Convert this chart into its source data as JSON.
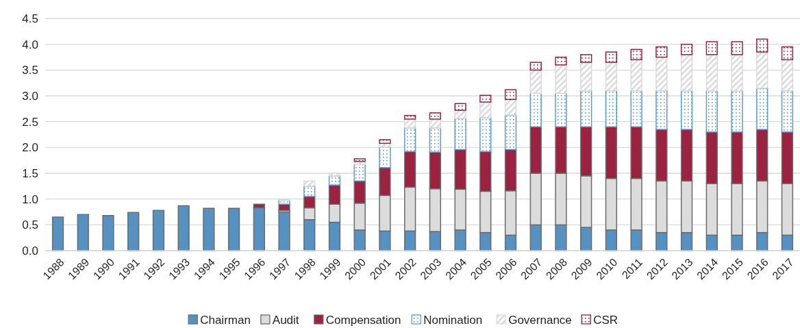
{
  "chart_data": {
    "type": "bar",
    "stacked": true,
    "categories": [
      "1988",
      "1989",
      "1990",
      "1991",
      "1992",
      "1993",
      "1994",
      "1995",
      "1996",
      "1997",
      "1998",
      "1999",
      "2000",
      "2001",
      "2002",
      "2003",
      "2004",
      "2005",
      "2006",
      "2007",
      "2008",
      "2009",
      "2010",
      "2011",
      "2012",
      "2013",
      "2014",
      "2015",
      "2016",
      "2017"
    ],
    "series": [
      {
        "name": "Chairman",
        "color": "#5591c1",
        "values": [
          0.65,
          0.7,
          0.68,
          0.74,
          0.78,
          0.87,
          0.82,
          0.82,
          0.83,
          0.75,
          0.6,
          0.55,
          0.4,
          0.38,
          0.38,
          0.37,
          0.4,
          0.35,
          0.3,
          0.5,
          0.5,
          0.45,
          0.4,
          0.4,
          0.35,
          0.35,
          0.3,
          0.3,
          0.35,
          0.3
        ]
      },
      {
        "name": "Audit",
        "color": "#dcdcdc",
        "values": [
          null,
          null,
          null,
          null,
          null,
          null,
          null,
          null,
          null,
          0.03,
          0.23,
          0.35,
          0.52,
          0.69,
          0.85,
          0.83,
          0.79,
          0.8,
          0.86,
          1.0,
          1.0,
          1.0,
          1.0,
          1.0,
          1.0,
          1.0,
          1.0,
          1.0,
          1.0,
          1.0
        ]
      },
      {
        "name": "Compensation",
        "color": "#9b2240",
        "values": [
          null,
          null,
          null,
          null,
          null,
          null,
          null,
          null,
          0.07,
          0.12,
          0.22,
          0.37,
          0.43,
          0.54,
          0.69,
          0.71,
          0.77,
          0.77,
          0.8,
          0.9,
          0.9,
          0.95,
          1.0,
          1.0,
          1.0,
          1.0,
          1.0,
          1.0,
          1.0,
          1.0
        ]
      },
      {
        "name": "Nomination",
        "color": "#5b9bd5",
        "values": [
          null,
          null,
          null,
          null,
          null,
          null,
          null,
          null,
          null,
          0.08,
          0.2,
          0.18,
          0.32,
          0.4,
          0.46,
          0.47,
          0.6,
          0.66,
          0.67,
          0.65,
          0.65,
          0.7,
          0.7,
          0.7,
          0.75,
          0.75,
          0.8,
          0.8,
          0.8,
          0.8
        ]
      },
      {
        "name": "Governance",
        "color": "#d9d9d9",
        "values": [
          null,
          null,
          null,
          null,
          null,
          null,
          null,
          null,
          null,
          0.02,
          0.1,
          0.05,
          0.06,
          0.07,
          0.17,
          0.17,
          0.16,
          0.3,
          0.3,
          0.45,
          0.55,
          0.55,
          0.55,
          0.6,
          0.65,
          0.7,
          0.7,
          0.7,
          0.7,
          0.6
        ]
      },
      {
        "name": "CSR",
        "color": "#9b2240",
        "values": [
          null,
          null,
          null,
          null,
          null,
          null,
          null,
          null,
          null,
          null,
          null,
          null,
          0.05,
          0.07,
          0.07,
          0.12,
          0.13,
          0.13,
          0.19,
          0.15,
          0.15,
          0.15,
          0.2,
          0.2,
          0.2,
          0.2,
          0.25,
          0.25,
          0.25,
          0.25
        ]
      }
    ],
    "ylim": [
      0,
      4.5
    ],
    "yticks": [
      {
        "value": 0,
        "label": "0.0"
      },
      {
        "value": 0.5,
        "label": "0.5"
      },
      {
        "value": 1,
        "label": "1.0"
      },
      {
        "value": 1.5,
        "label": "1.5"
      },
      {
        "value": 2,
        "label": "2.0"
      },
      {
        "value": 2.5,
        "label": "2.5"
      },
      {
        "value": 3,
        "label": "3.0"
      },
      {
        "value": 3.5,
        "label": "3.5"
      },
      {
        "value": 4,
        "label": "4.0"
      },
      {
        "value": 4.5,
        "label": "4.5"
      }
    ],
    "grid": "y",
    "legend": "bottom"
  }
}
